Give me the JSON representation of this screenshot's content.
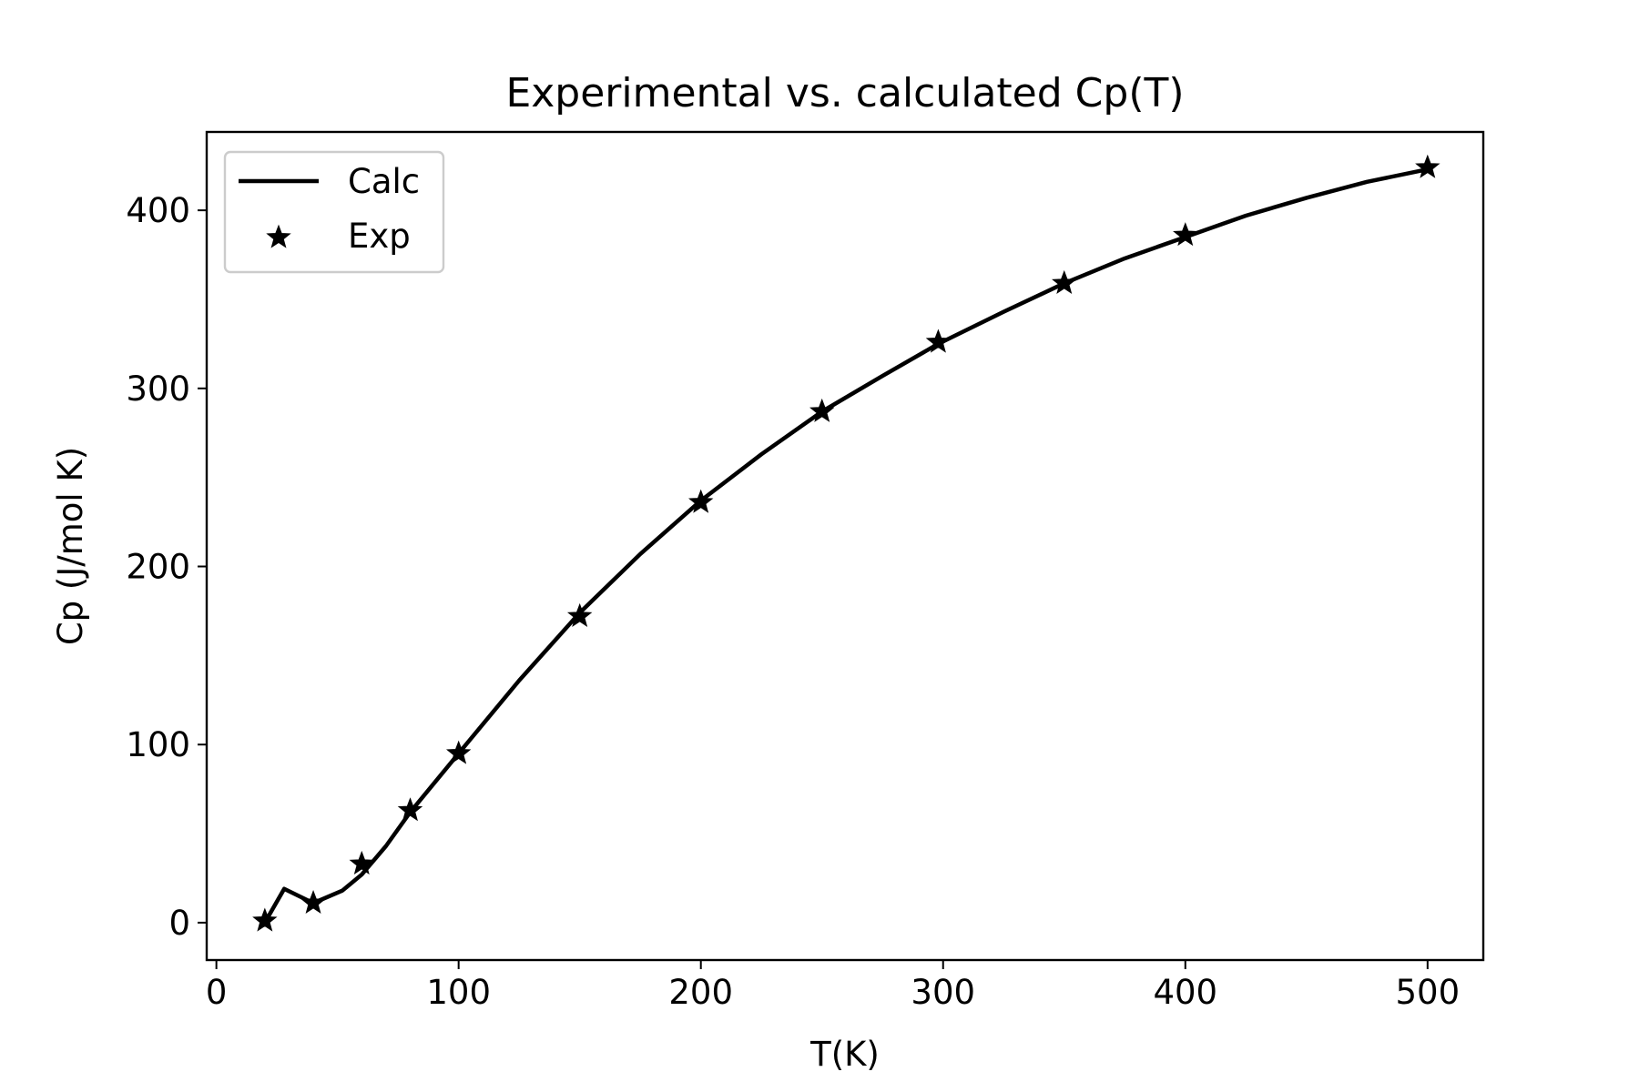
{
  "chart_data": {
    "type": "line",
    "title": "Experimental vs. calculated Cp(T)",
    "xlabel": "T(K)",
    "ylabel": "Cp (J/mol K)",
    "xlim": [
      -4,
      523
    ],
    "ylim": [
      -21,
      444
    ],
    "xticks": [
      0,
      100,
      200,
      300,
      400,
      500
    ],
    "yticks": [
      0,
      100,
      200,
      300,
      400
    ],
    "grid": false,
    "legend_position": "top-left",
    "series": [
      {
        "name": "Calc",
        "style": "line",
        "color": "#000000",
        "x": [
          20,
          28,
          40,
          52,
          60,
          70,
          80,
          100,
          125,
          150,
          175,
          200,
          225,
          250,
          275,
          298,
          325,
          350,
          375,
          400,
          425,
          450,
          475,
          500
        ],
        "y": [
          0,
          19,
          11,
          18,
          27,
          43,
          62,
          95,
          136,
          174,
          207,
          237,
          263,
          287,
          307,
          325,
          343,
          359,
          373,
          385,
          397,
          407,
          416,
          423
        ]
      },
      {
        "name": "Exp",
        "style": "marker-star",
        "color": "#000000",
        "x": [
          20,
          40,
          60,
          80,
          100,
          150,
          200,
          250,
          298,
          350,
          400,
          500
        ],
        "y": [
          1,
          11,
          33,
          63,
          95,
          172,
          236,
          287,
          326,
          359,
          386,
          424
        ]
      }
    ]
  }
}
